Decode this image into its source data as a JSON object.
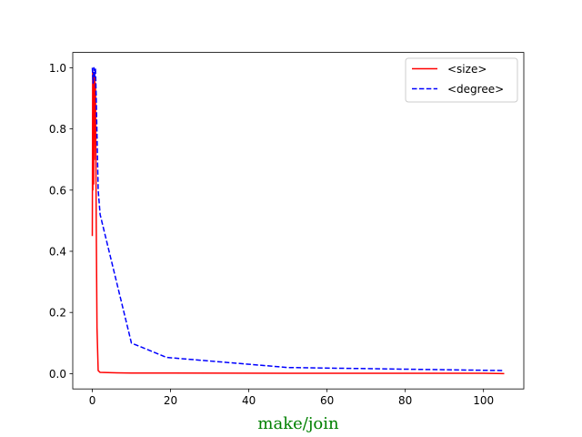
{
  "chart_data": {
    "type": "line",
    "xlabel": "make/join",
    "xlabel_color": "#008000",
    "ylabel": "",
    "xlim": [
      -5,
      110.3
    ],
    "ylim": [
      -0.05,
      1.05
    ],
    "xticks": [
      0,
      20,
      40,
      60,
      80,
      100
    ],
    "yticks": [
      0.0,
      0.2,
      0.4,
      0.6,
      0.8,
      1.0
    ],
    "xtick_labels": [
      "0",
      "20",
      "40",
      "60",
      "80",
      "100"
    ],
    "ytick_labels": [
      "0.0",
      "0.2",
      "0.4",
      "0.6",
      "0.8",
      "1.0"
    ],
    "grid": false,
    "legend_position": "top-right",
    "series": [
      {
        "name": "<size>",
        "color": "#ff0000",
        "dash": "solid",
        "x": [
          0,
          0.1,
          0.15,
          0.2,
          0.25,
          0.3,
          0.35,
          0.4,
          0.5,
          0.6,
          0.7,
          0.8,
          1.0,
          1.2,
          1.5,
          2,
          5,
          10,
          20,
          50,
          100,
          105.3
        ],
        "y": [
          0.45,
          0.99,
          0.6,
          0.98,
          0.65,
          0.97,
          0.62,
          0.96,
          0.7,
          0.98,
          0.8,
          0.95,
          0.5,
          0.15,
          0.01,
          0.004,
          0.003,
          0.002,
          0.002,
          0.001,
          0.001,
          0.0
        ]
      },
      {
        "name": "<degree>",
        "color": "#0000ff",
        "dash": "dashed",
        "x": [
          0,
          0.2,
          0.4,
          0.6,
          0.8,
          1.0,
          1.5,
          2,
          10,
          19,
          50,
          105.3
        ],
        "y": [
          1.0,
          0.95,
          1.0,
          0.97,
          1.0,
          0.9,
          0.6,
          0.52,
          0.1,
          0.053,
          0.02,
          0.01
        ]
      }
    ]
  }
}
